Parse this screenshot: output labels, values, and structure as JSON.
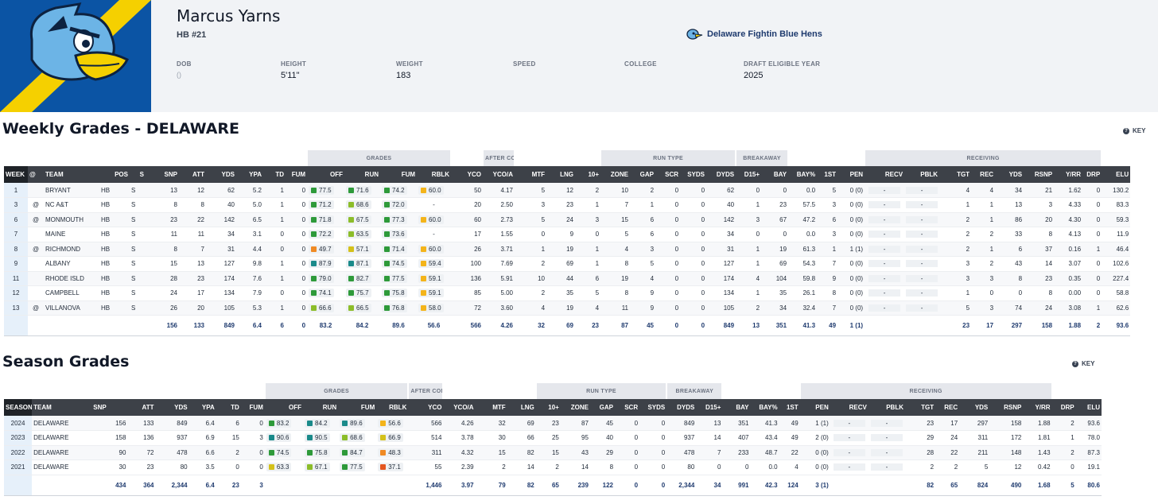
{
  "player": {
    "name": "Marcus Yarns",
    "position": "HB #21",
    "team": "Delaware Fightin Blue Hens"
  },
  "bio": [
    {
      "label": "DOB",
      "value": "()"
    },
    {
      "label": "HEIGHT",
      "value": "5'11\""
    },
    {
      "label": "WEIGHT",
      "value": "183"
    },
    {
      "label": "SPEED",
      "value": ""
    },
    {
      "label": "COLLEGE",
      "value": ""
    },
    {
      "label": "DRAFT ELIGIBLE YEAR",
      "value": "2025"
    }
  ],
  "colors": {
    "elite": "#1a8a8a",
    "high": "#2e9a3a",
    "good": "#8cbd2a",
    "avg": "#d4c11a",
    "below": "#f4b41a",
    "low": "#f08a24",
    "poor": "#e4561f",
    "brand_blue": "#0b54a4",
    "brand_gold": "#f5d000"
  },
  "key_label": "KEY",
  "weekly": {
    "title": "Weekly Grades - DELAWARE",
    "groups": [
      "GRADES",
      "AFTER CONTACT",
      "RUN TYPE",
      "BREAKAWAY",
      "RECEIVING"
    ],
    "columns": [
      "WEEK",
      "@",
      "TEAM",
      "POS",
      "S",
      "SNP",
      "ATT",
      "YDS",
      "YPA",
      "TD",
      "FUM",
      "OFF",
      "RUN",
      "FUM",
      "RBLK",
      "YCO",
      "YCO/A",
      "MTF",
      "LNG",
      "10+",
      "ZONE",
      "GAP",
      "SCR",
      "SYDS",
      "DYDS",
      "D15+",
      "BAY",
      "BAY%",
      "1ST",
      "PEN",
      "RECV",
      "PBLK",
      "TGT",
      "REC",
      "YDS",
      "RSNP",
      "Y/RR",
      "DRP",
      "ELU"
    ],
    "rows": [
      {
        "c": [
          "1",
          "",
          "BRYANT",
          "HB",
          "S",
          "13",
          "12",
          "62",
          "5.2",
          "1",
          "0"
        ],
        "g": [
          [
            "77.5",
            "high"
          ],
          [
            "71.6",
            "high"
          ],
          [
            "74.2",
            "high"
          ],
          [
            "60.0",
            "below"
          ]
        ],
        "r": [
          "50",
          "4.17",
          "5",
          "12",
          "2",
          "10",
          "2",
          "0",
          "0",
          "62",
          "0",
          "0",
          "0.0",
          "5",
          "0 (0)",
          "-",
          "-",
          "4",
          "4",
          "34",
          "21",
          "1.62",
          "0",
          "130.2"
        ]
      },
      {
        "c": [
          "3",
          "@",
          "NC A&T",
          "HB",
          "S",
          "8",
          "8",
          "40",
          "5.0",
          "1",
          "0"
        ],
        "g": [
          [
            "71.2",
            "high"
          ],
          [
            "68.6",
            "good"
          ],
          [
            "72.0",
            "high"
          ],
          [
            "-",
            ""
          ]
        ],
        "r": [
          "20",
          "2.50",
          "3",
          "23",
          "1",
          "7",
          "1",
          "0",
          "0",
          "40",
          "1",
          "23",
          "57.5",
          "3",
          "0 (0)",
          "-",
          "-",
          "1",
          "1",
          "13",
          "3",
          "4.33",
          "0",
          "83.3"
        ]
      },
      {
        "c": [
          "6",
          "@",
          "MONMOUTH",
          "HB",
          "S",
          "23",
          "22",
          "142",
          "6.5",
          "1",
          "0"
        ],
        "g": [
          [
            "71.8",
            "high"
          ],
          [
            "67.5",
            "good"
          ],
          [
            "77.3",
            "high"
          ],
          [
            "60.0",
            "below"
          ]
        ],
        "r": [
          "60",
          "2.73",
          "5",
          "24",
          "3",
          "15",
          "6",
          "0",
          "0",
          "142",
          "3",
          "67",
          "47.2",
          "6",
          "0 (0)",
          "-",
          "-",
          "2",
          "1",
          "86",
          "20",
          "4.30",
          "0",
          "59.3"
        ]
      },
      {
        "c": [
          "7",
          "",
          "MAINE",
          "HB",
          "S",
          "11",
          "11",
          "34",
          "3.1",
          "0",
          "0"
        ],
        "g": [
          [
            "72.2",
            "high"
          ],
          [
            "63.5",
            "good"
          ],
          [
            "73.6",
            "high"
          ],
          [
            "-",
            ""
          ]
        ],
        "r": [
          "17",
          "1.55",
          "0",
          "9",
          "0",
          "5",
          "6",
          "0",
          "0",
          "34",
          "0",
          "0",
          "0.0",
          "3",
          "0 (0)",
          "-",
          "-",
          "2",
          "2",
          "33",
          "8",
          "4.13",
          "0",
          "11.9"
        ]
      },
      {
        "c": [
          "8",
          "@",
          "RICHMOND",
          "HB",
          "S",
          "8",
          "7",
          "31",
          "4.4",
          "0",
          "0"
        ],
        "g": [
          [
            "49.7",
            "low"
          ],
          [
            "57.1",
            "avg"
          ],
          [
            "71.4",
            "high"
          ],
          [
            "60.0",
            "below"
          ]
        ],
        "r": [
          "26",
          "3.71",
          "1",
          "19",
          "1",
          "4",
          "3",
          "0",
          "0",
          "31",
          "1",
          "19",
          "61.3",
          "1",
          "1 (1)",
          "-",
          "-",
          "2",
          "1",
          "6",
          "37",
          "0.16",
          "1",
          "46.4"
        ]
      },
      {
        "c": [
          "9",
          "",
          "ALBANY",
          "HB",
          "S",
          "15",
          "13",
          "127",
          "9.8",
          "1",
          "0"
        ],
        "g": [
          [
            "87.9",
            "elite"
          ],
          [
            "87.1",
            "elite"
          ],
          [
            "74.5",
            "high"
          ],
          [
            "59.4",
            "below"
          ]
        ],
        "r": [
          "100",
          "7.69",
          "2",
          "69",
          "1",
          "8",
          "5",
          "0",
          "0",
          "127",
          "1",
          "69",
          "54.3",
          "7",
          "0 (0)",
          "-",
          "-",
          "3",
          "2",
          "43",
          "14",
          "3.07",
          "0",
          "102.6"
        ]
      },
      {
        "c": [
          "11",
          "",
          "RHODE ISLD",
          "HB",
          "S",
          "28",
          "23",
          "174",
          "7.6",
          "1",
          "0"
        ],
        "g": [
          [
            "79.0",
            "high"
          ],
          [
            "82.7",
            "high"
          ],
          [
            "77.5",
            "high"
          ],
          [
            "59.1",
            "below"
          ]
        ],
        "r": [
          "136",
          "5.91",
          "10",
          "44",
          "6",
          "19",
          "4",
          "0",
          "0",
          "174",
          "4",
          "104",
          "59.8",
          "9",
          "0 (0)",
          "-",
          "-",
          "3",
          "3",
          "8",
          "23",
          "0.35",
          "0",
          "227.4"
        ]
      },
      {
        "c": [
          "12",
          "",
          "CAMPBELL",
          "HB",
          "S",
          "24",
          "17",
          "134",
          "7.9",
          "0",
          "0"
        ],
        "g": [
          [
            "74.1",
            "high"
          ],
          [
            "75.7",
            "high"
          ],
          [
            "75.8",
            "high"
          ],
          [
            "59.1",
            "below"
          ]
        ],
        "r": [
          "85",
          "5.00",
          "2",
          "35",
          "5",
          "8",
          "9",
          "0",
          "0",
          "134",
          "1",
          "35",
          "26.1",
          "8",
          "0 (0)",
          "-",
          "-",
          "1",
          "0",
          "0",
          "8",
          "0.00",
          "0",
          "58.8"
        ]
      },
      {
        "c": [
          "13",
          "@",
          "VILLANOVA",
          "HB",
          "S",
          "26",
          "20",
          "105",
          "5.3",
          "1",
          "0"
        ],
        "g": [
          [
            "66.6",
            "good"
          ],
          [
            "66.5",
            "good"
          ],
          [
            "76.8",
            "high"
          ],
          [
            "58.0",
            "below"
          ]
        ],
        "r": [
          "72",
          "3.60",
          "4",
          "19",
          "4",
          "11",
          "9",
          "0",
          "0",
          "105",
          "2",
          "34",
          "32.4",
          "7",
          "0 (0)",
          "-",
          "-",
          "5",
          "3",
          "74",
          "24",
          "3.08",
          "1",
          "62.6"
        ]
      }
    ],
    "totals": [
      "",
      "",
      "",
      "",
      "",
      "156",
      "133",
      "849",
      "6.4",
      "6",
      "0",
      "83.2",
      "84.2",
      "89.6",
      "56.6",
      "566",
      "4.26",
      "32",
      "69",
      "23",
      "87",
      "45",
      "0",
      "0",
      "849",
      "13",
      "351",
      "41.3",
      "49",
      "1 (1)",
      "",
      "",
      "23",
      "17",
      "297",
      "158",
      "1.88",
      "2",
      "93.6"
    ]
  },
  "season": {
    "title": "Season Grades",
    "groups": [
      "GRADES",
      "AFTER CONTACT",
      "RUN TYPE",
      "BREAKAWAY",
      "RECEIVING"
    ],
    "columns": [
      "SEASON",
      "TEAM",
      "SNP",
      "ATT",
      "YDS",
      "YPA",
      "TD",
      "FUM",
      "OFF",
      "RUN",
      "FUM",
      "RBLK",
      "YCO",
      "YCO/A",
      "MTF",
      "LNG",
      "10+",
      "ZONE",
      "GAP",
      "SCR",
      "SYDS",
      "DYDS",
      "D15+",
      "BAY",
      "BAY%",
      "1ST",
      "PEN",
      "RECV",
      "PBLK",
      "TGT",
      "REC",
      "YDS",
      "RSNP",
      "Y/RR",
      "DRP",
      "ELU"
    ],
    "rows": [
      {
        "c": [
          "2024",
          "DELAWARE",
          "156",
          "133",
          "849",
          "6.4",
          "6",
          "0"
        ],
        "g": [
          [
            "83.2",
            "high"
          ],
          [
            "84.2",
            "elite"
          ],
          [
            "89.6",
            "elite"
          ],
          [
            "56.6",
            "below"
          ]
        ],
        "r": [
          "566",
          "4.26",
          "32",
          "69",
          "23",
          "87",
          "45",
          "0",
          "0",
          "849",
          "13",
          "351",
          "41.3",
          "49",
          "1 (1)",
          "-",
          "-",
          "23",
          "17",
          "297",
          "158",
          "1.88",
          "2",
          "93.6"
        ]
      },
      {
        "c": [
          "2023",
          "DELAWARE",
          "158",
          "136",
          "937",
          "6.9",
          "15",
          "3"
        ],
        "g": [
          [
            "90.6",
            "elite"
          ],
          [
            "90.5",
            "elite"
          ],
          [
            "68.6",
            "good"
          ],
          [
            "66.9",
            "avg"
          ]
        ],
        "r": [
          "514",
          "3.78",
          "30",
          "66",
          "25",
          "95",
          "40",
          "0",
          "0",
          "937",
          "14",
          "407",
          "43.4",
          "49",
          "2 (0)",
          "-",
          "-",
          "29",
          "24",
          "311",
          "172",
          "1.81",
          "1",
          "78.0"
        ]
      },
      {
        "c": [
          "2022",
          "DELAWARE",
          "90",
          "72",
          "478",
          "6.6",
          "2",
          "0"
        ],
        "g": [
          [
            "74.5",
            "high"
          ],
          [
            "75.8",
            "high"
          ],
          [
            "84.7",
            "high"
          ],
          [
            "48.3",
            "low"
          ]
        ],
        "r": [
          "311",
          "4.32",
          "15",
          "82",
          "15",
          "43",
          "29",
          "0",
          "0",
          "478",
          "7",
          "233",
          "48.7",
          "22",
          "0 (0)",
          "-",
          "-",
          "28",
          "22",
          "211",
          "148",
          "1.43",
          "2",
          "87.3"
        ]
      },
      {
        "c": [
          "2021",
          "DELAWARE",
          "30",
          "23",
          "80",
          "3.5",
          "0",
          "0"
        ],
        "g": [
          [
            "63.3",
            "avg"
          ],
          [
            "67.1",
            "good"
          ],
          [
            "77.5",
            "high"
          ],
          [
            "37.1",
            "poor"
          ]
        ],
        "r": [
          "55",
          "2.39",
          "2",
          "14",
          "2",
          "14",
          "8",
          "0",
          "0",
          "80",
          "0",
          "0",
          "0.0",
          "4",
          "0 (0)",
          "-",
          "-",
          "2",
          "2",
          "5",
          "12",
          "0.42",
          "0",
          "19.1"
        ]
      }
    ],
    "totals": [
      "",
      "",
      "434",
      "364",
      "2,344",
      "6.4",
      "23",
      "3",
      "",
      "",
      "",
      "",
      "1,446",
      "3.97",
      "79",
      "82",
      "65",
      "239",
      "122",
      "0",
      "0",
      "2,344",
      "34",
      "991",
      "42.3",
      "124",
      "3 (1)",
      "",
      "",
      "82",
      "65",
      "824",
      "490",
      "1.68",
      "5",
      "80.6"
    ]
  }
}
